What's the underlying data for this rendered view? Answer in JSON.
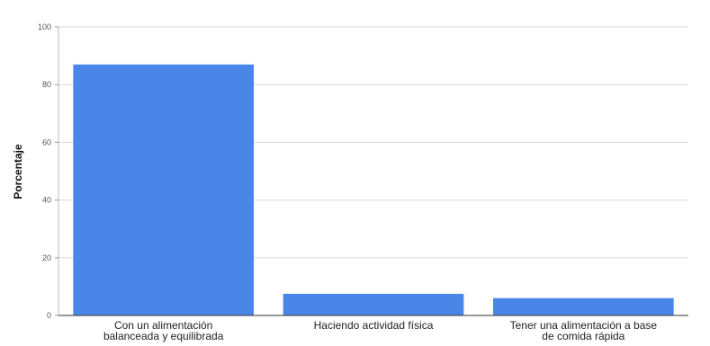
{
  "chart_data": {
    "type": "bar",
    "ylabel": "Porcentaje",
    "xlabel": "",
    "categories": [
      [
        "Con un alimentación",
        "balanceada y equilibrada"
      ],
      [
        "Haciendo actividad física"
      ],
      [
        "Tener una alimentación a base",
        "de comida rápida"
      ]
    ],
    "values": [
      87,
      7.5,
      6
    ],
    "ylim": [
      0,
      100
    ],
    "yticks": [
      0,
      20,
      40,
      60,
      80,
      100
    ],
    "grid": true,
    "legend": "none",
    "bar_color": "#4a86e8"
  }
}
